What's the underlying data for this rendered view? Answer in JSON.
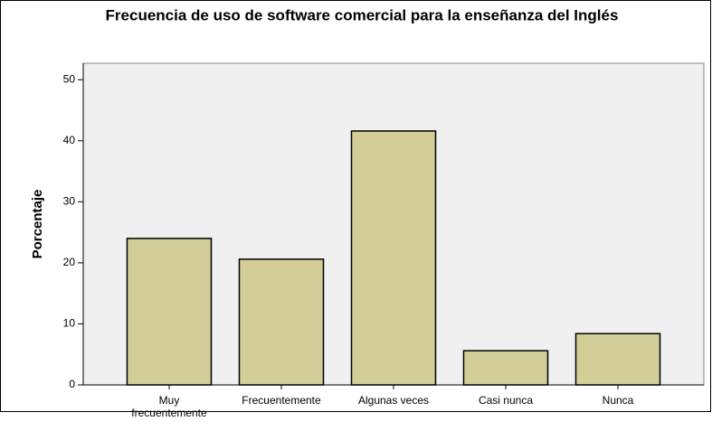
{
  "chart_data": {
    "type": "bar",
    "title": "Frecuencia de uso de software comercial para la enseñanza del Inglés",
    "y_label": "Porcentaje",
    "categories": [
      "Muy frecuentemente",
      "Frecuentemente",
      "Algunas veces",
      "Casi nunca",
      "Nunca"
    ],
    "values": [
      24.0,
      20.6,
      41.6,
      5.6,
      8.4
    ],
    "color": "#d3ce97",
    "ylim": [
      0,
      52.7
    ],
    "yticks": [
      0,
      10,
      20,
      30,
      40,
      50
    ],
    "grid": false
  }
}
